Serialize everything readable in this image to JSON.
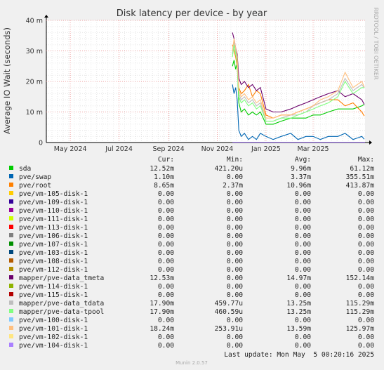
{
  "chart_data": {
    "type": "line",
    "title": "Disk latency per device - by year",
    "ylabel": "Average IO Wait (seconds)",
    "side_label": "RRDTOOL / TOBI OETIKER",
    "y_ticks": [
      "0",
      "10 m",
      "20 m",
      "30 m",
      "40 m"
    ],
    "y_tick_values": [
      0,
      0.01,
      0.02,
      0.03,
      0.04
    ],
    "ylim": [
      0,
      0.04
    ],
    "x_ticks": [
      "May 2024",
      "Jul 2024",
      "Sep 2024",
      "Nov 2024",
      "Jan 2025",
      "Mar 2025"
    ],
    "x_tick_values": [
      "2024-05-01",
      "2024-07-01",
      "2024-09-01",
      "2024-11-01",
      "2025-01-01",
      "2025-03-01"
    ],
    "xlim": [
      "2024-04-01",
      "2025-05-05"
    ],
    "grid": true,
    "legend_headers": [
      "Cur:",
      "Min:",
      "Avg:",
      "Max:"
    ],
    "series": [
      {
        "name": "sda",
        "color": "#00cc00",
        "cur": "12.52m",
        "min": "421.20u",
        "avg": "9.96m",
        "max": "61.12m",
        "x": [
          "2024-11-20",
          "2024-11-22",
          "2024-11-24",
          "2024-11-26",
          "2024-11-28",
          "2024-12-01",
          "2024-12-05",
          "2024-12-10",
          "2024-12-15",
          "2024-12-20",
          "2024-12-25",
          "2025-01-01",
          "2025-01-10",
          "2025-01-20",
          "2025-02-01",
          "2025-02-10",
          "2025-02-20",
          "2025-03-01",
          "2025-03-10",
          "2025-03-20",
          "2025-04-01",
          "2025-04-10",
          "2025-04-20",
          "2025-05-01",
          "2025-05-04"
        ],
        "values": [
          0.025,
          0.027,
          0.024,
          0.026,
          0.013,
          0.01,
          0.011,
          0.009,
          0.01,
          0.009,
          0.01,
          0.006,
          0.006,
          0.007,
          0.008,
          0.008,
          0.008,
          0.009,
          0.009,
          0.01,
          0.011,
          0.011,
          0.011,
          0.012,
          0.0125
        ]
      },
      {
        "name": "pve/swap",
        "color": "#0066b3",
        "cur": "1.10m",
        "min": "0.00",
        "avg": "3.37m",
        "max": "355.51m",
        "x": [
          "2024-11-20",
          "2024-11-22",
          "2024-11-24",
          "2024-11-26",
          "2024-11-28",
          "2024-12-01",
          "2024-12-05",
          "2024-12-10",
          "2024-12-15",
          "2024-12-20",
          "2024-12-25",
          "2025-01-01",
          "2025-01-10",
          "2025-01-20",
          "2025-02-01",
          "2025-02-10",
          "2025-02-20",
          "2025-03-01",
          "2025-03-10",
          "2025-03-20",
          "2025-04-01",
          "2025-04-10",
          "2025-04-20",
          "2025-05-01",
          "2025-05-04"
        ],
        "values": [
          0.019,
          0.016,
          0.018,
          0.014,
          0.004,
          0.002,
          0.003,
          0.001,
          0.002,
          0.001,
          0.003,
          0.002,
          0.001,
          0.002,
          0.003,
          0.001,
          0.002,
          0.002,
          0.001,
          0.002,
          0.002,
          0.003,
          0.001,
          0.002,
          0.0011
        ]
      },
      {
        "name": "pve/root",
        "color": "#ff8000",
        "cur": "8.65m",
        "min": "2.37m",
        "avg": "10.96m",
        "max": "413.87m",
        "x": [
          "2024-11-20",
          "2024-11-22",
          "2024-11-24",
          "2024-11-26",
          "2024-11-28",
          "2024-12-01",
          "2024-12-05",
          "2024-12-10",
          "2024-12-15",
          "2024-12-20",
          "2024-12-25",
          "2025-01-01",
          "2025-01-10",
          "2025-01-20",
          "2025-02-01",
          "2025-02-10",
          "2025-02-20",
          "2025-03-01",
          "2025-03-10",
          "2025-03-20",
          "2025-04-01",
          "2025-04-10",
          "2025-04-20",
          "2025-05-01",
          "2025-05-04"
        ],
        "values": [
          0.032,
          0.03,
          0.028,
          0.025,
          0.018,
          0.016,
          0.017,
          0.019,
          0.015,
          0.017,
          0.016,
          0.009,
          0.008,
          0.009,
          0.009,
          0.01,
          0.011,
          0.012,
          0.013,
          0.014,
          0.014,
          0.012,
          0.013,
          0.01,
          0.0087
        ]
      },
      {
        "name": "pve/vm-105-disk-1",
        "color": "#ffcc00",
        "cur": "0.00",
        "min": "0.00",
        "avg": "0.00",
        "max": "0.00"
      },
      {
        "name": "pve/vm-109-disk-1",
        "color": "#330099",
        "cur": "0.00",
        "min": "0.00",
        "avg": "0.00",
        "max": "0.00"
      },
      {
        "name": "pve/vm-110-disk-1",
        "color": "#990099",
        "cur": "0.00",
        "min": "0.00",
        "avg": "0.00",
        "max": "0.00"
      },
      {
        "name": "pve/vm-111-disk-1",
        "color": "#ccff00",
        "cur": "0.00",
        "min": "0.00",
        "avg": "0.00",
        "max": "0.00"
      },
      {
        "name": "pve/vm-113-disk-1",
        "color": "#ff0000",
        "cur": "0.00",
        "min": "0.00",
        "avg": "0.00",
        "max": "0.00"
      },
      {
        "name": "pve/vm-106-disk-1",
        "color": "#808080",
        "cur": "0.00",
        "min": "0.00",
        "avg": "0.00",
        "max": "0.00"
      },
      {
        "name": "pve/vm-107-disk-1",
        "color": "#008f00",
        "cur": "0.00",
        "min": "0.00",
        "avg": "0.00",
        "max": "0.00"
      },
      {
        "name": "pve/vm-103-disk-1",
        "color": "#00487d",
        "cur": "0.00",
        "min": "0.00",
        "avg": "0.00",
        "max": "0.00"
      },
      {
        "name": "pve/vm-108-disk-1",
        "color": "#b35a00",
        "cur": "0.00",
        "min": "0.00",
        "avg": "0.00",
        "max": "0.00"
      },
      {
        "name": "pve/vm-112-disk-1",
        "color": "#b38f00",
        "cur": "0.00",
        "min": "0.00",
        "avg": "0.00",
        "max": "0.00"
      },
      {
        "name": "mapper/pve-data_tmeta",
        "color": "#6b006b",
        "cur": "12.53m",
        "min": "0.00",
        "avg": "14.97m",
        "max": "152.14m",
        "x": [
          "2024-11-20",
          "2024-11-22",
          "2024-11-24",
          "2024-11-26",
          "2024-11-28",
          "2024-12-01",
          "2024-12-05",
          "2024-12-10",
          "2024-12-15",
          "2024-12-20",
          "2024-12-25",
          "2025-01-01",
          "2025-01-10",
          "2025-01-20",
          "2025-02-01",
          "2025-02-10",
          "2025-02-20",
          "2025-03-01",
          "2025-03-10",
          "2025-03-20",
          "2025-04-01",
          "2025-04-10",
          "2025-04-20",
          "2025-05-01",
          "2025-05-04"
        ],
        "values": [
          0.036,
          0.034,
          0.031,
          0.029,
          0.021,
          0.019,
          0.02,
          0.018,
          0.019,
          0.017,
          0.018,
          0.011,
          0.01,
          0.01,
          0.011,
          0.012,
          0.013,
          0.014,
          0.015,
          0.016,
          0.017,
          0.015,
          0.016,
          0.014,
          0.0125
        ]
      },
      {
        "name": "pve/vm-114-disk-1",
        "color": "#8fb300",
        "cur": "0.00",
        "min": "0.00",
        "avg": "0.00",
        "max": "0.00"
      },
      {
        "name": "pve/vm-115-disk-1",
        "color": "#b30000",
        "cur": "0.00",
        "min": "0.00",
        "avg": "0.00",
        "max": "0.00"
      },
      {
        "name": "mapper/pve-data_tdata",
        "color": "#bebebe",
        "cur": "17.90m",
        "min": "459.77u",
        "avg": "13.25m",
        "max": "115.29m",
        "x": [
          "2024-11-20",
          "2024-11-22",
          "2024-11-24",
          "2024-11-26",
          "2024-11-28",
          "2024-12-01",
          "2024-12-05",
          "2024-12-10",
          "2024-12-15",
          "2024-12-20",
          "2024-12-25",
          "2025-01-01",
          "2025-01-10",
          "2025-01-20",
          "2025-02-01",
          "2025-02-10",
          "2025-02-20",
          "2025-03-01",
          "2025-03-10",
          "2025-03-20",
          "2025-04-01",
          "2025-04-10",
          "2025-04-20",
          "2025-05-01",
          "2025-05-04"
        ],
        "values": [
          0.029,
          0.033,
          0.03,
          0.027,
          0.016,
          0.014,
          0.015,
          0.013,
          0.014,
          0.012,
          0.013,
          0.007,
          0.007,
          0.008,
          0.009,
          0.009,
          0.01,
          0.012,
          0.013,
          0.014,
          0.016,
          0.021,
          0.017,
          0.019,
          0.0179
        ]
      },
      {
        "name": "mapper/pve-data-tpool",
        "color": "#80ff80",
        "cur": "17.90m",
        "min": "460.59u",
        "avg": "13.25m",
        "max": "115.29m",
        "x": [
          "2024-11-20",
          "2024-11-22",
          "2024-11-24",
          "2024-11-26",
          "2024-11-28",
          "2024-12-01",
          "2024-12-05",
          "2024-12-10",
          "2024-12-15",
          "2024-12-20",
          "2024-12-25",
          "2025-01-01",
          "2025-01-10",
          "2025-01-20",
          "2025-02-01",
          "2025-02-10",
          "2025-02-20",
          "2025-03-01",
          "2025-03-10",
          "2025-03-20",
          "2025-04-01",
          "2025-04-10",
          "2025-04-20",
          "2025-05-01",
          "2025-05-04"
        ],
        "values": [
          0.028,
          0.032,
          0.029,
          0.026,
          0.015,
          0.013,
          0.014,
          0.012,
          0.013,
          0.011,
          0.012,
          0.007,
          0.007,
          0.008,
          0.008,
          0.009,
          0.01,
          0.011,
          0.012,
          0.013,
          0.015,
          0.02,
          0.016,
          0.018,
          0.0179
        ]
      },
      {
        "name": "pve/vm-100-disk-1",
        "color": "#80c9ff",
        "cur": "0.00",
        "min": "0.00",
        "avg": "0.00",
        "max": "0.00"
      },
      {
        "name": "pve/vm-101-disk-1",
        "color": "#ffc080",
        "cur": "18.24m",
        "min": "253.91u",
        "avg": "13.59m",
        "max": "125.97m",
        "x": [
          "2024-11-20",
          "2024-11-22",
          "2024-11-24",
          "2024-11-26",
          "2024-11-28",
          "2024-12-01",
          "2024-12-05",
          "2024-12-10",
          "2024-12-15",
          "2024-12-20",
          "2024-12-25",
          "2025-01-01",
          "2025-01-10",
          "2025-01-20",
          "2025-02-01",
          "2025-02-10",
          "2025-02-20",
          "2025-03-01",
          "2025-03-10",
          "2025-03-20",
          "2025-04-01",
          "2025-04-10",
          "2025-04-20",
          "2025-05-01",
          "2025-05-04"
        ],
        "values": [
          0.03,
          0.034,
          0.031,
          0.028,
          0.017,
          0.015,
          0.016,
          0.014,
          0.015,
          0.013,
          0.014,
          0.008,
          0.008,
          0.009,
          0.009,
          0.01,
          0.011,
          0.012,
          0.014,
          0.015,
          0.017,
          0.023,
          0.018,
          0.02,
          0.0182
        ]
      },
      {
        "name": "pve/vm-102-disk-1",
        "color": "#ffe680",
        "cur": "0.00",
        "min": "0.00",
        "avg": "0.00",
        "max": "0.00"
      },
      {
        "name": "pve/vm-104-disk-1",
        "color": "#aa80ff",
        "cur": "0.00",
        "min": "0.00",
        "avg": "0.00",
        "max": "0.00"
      }
    ],
    "last_update": "Last update: Mon May  5 00:20:16 2025",
    "footer": "Munin 2.0.57"
  }
}
